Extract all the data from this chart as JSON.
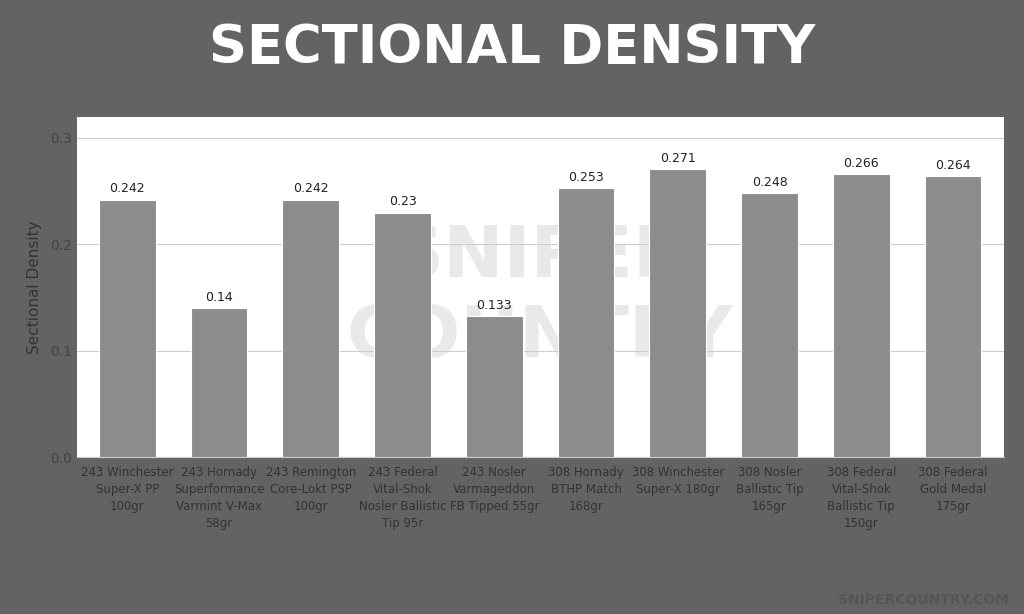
{
  "title": "SECTIONAL DENSITY",
  "title_bg_color": "#636363",
  "title_text_color": "#ffffff",
  "accent_color": "#e86060",
  "bar_color": "#8c8c8c",
  "bg_color": "#ffffff",
  "ylabel": "Sectional Density",
  "ylim": [
    0,
    0.32
  ],
  "yticks": [
    0,
    0.1,
    0.2,
    0.3
  ],
  "categories": [
    "243 Winchester\nSuper-X PP\n100gr",
    "243 Hornady\nSuperformance\nVarmint V-Max\n58gr",
    "243 Remington\nCore-Lokt PSP\n100gr",
    "243 Federal\nVital-Shok\nNosler Ballistic\nTip 95r",
    "243 Nosler\nVarmageddon\nFB Tipped 55gr",
    "308 Hornady\nBTHP Match\n168gr",
    "308 Winchester\nSuper-X 180gr",
    "308 Nosler\nBallistic Tip\n165gr",
    "308 Federal\nVital-Shok\nBallistic Tip\n150gr",
    "308 Federal\nGold Medal\n175gr"
  ],
  "values": [
    0.242,
    0.14,
    0.242,
    0.23,
    0.133,
    0.253,
    0.271,
    0.248,
    0.266,
    0.264
  ],
  "watermark": "SNIPERCOUNTRY.COM",
  "chart_bg": "#ffffff",
  "grid_color": "#cccccc",
  "label_fontsize": 8.5,
  "value_fontsize": 9,
  "title_fontsize": 38,
  "ylabel_fontsize": 11
}
